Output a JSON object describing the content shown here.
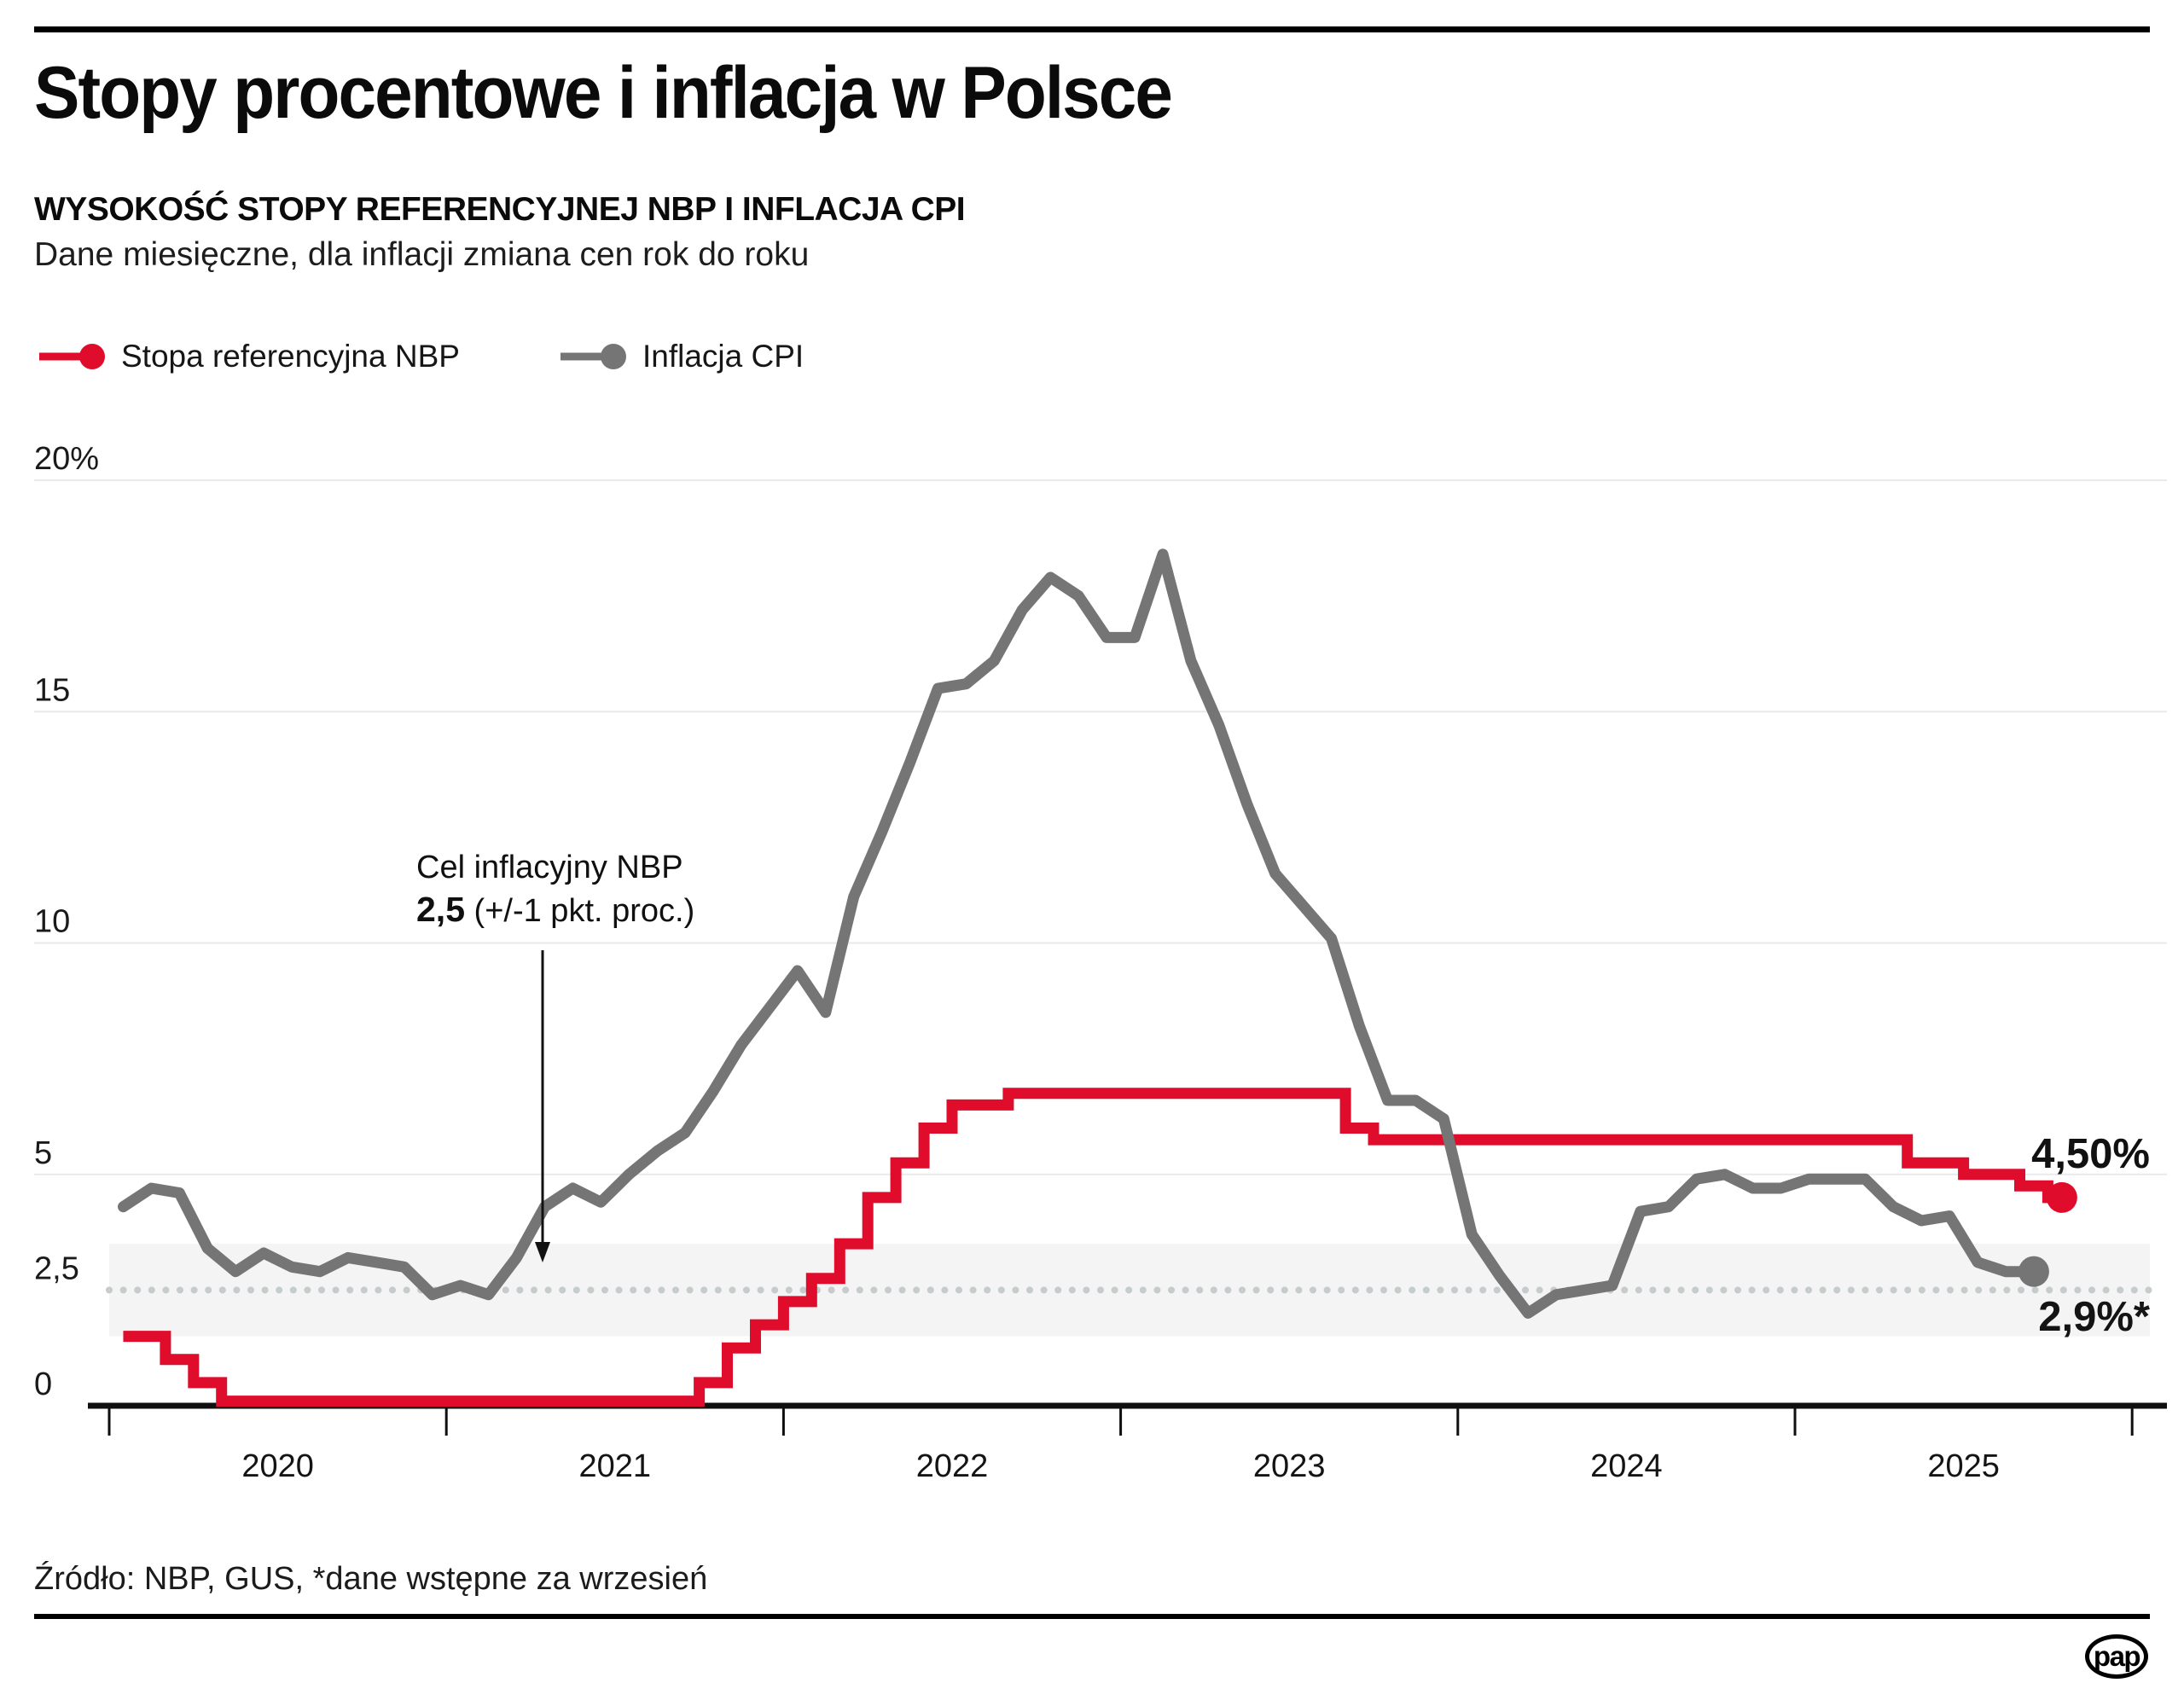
{
  "header": {
    "title": "Stopy procentowe i inflacja w Polsce",
    "subtitle": "WYSOKOŚĆ STOPY REFERENCYJNEJ NBP I INFLACJA CPI",
    "description": "Dane miesięczne, dla inflacji zmiana cen rok do roku"
  },
  "legend": {
    "rate_label": "Stopa referencyjna NBP",
    "cpi_label": "Inflacja CPI"
  },
  "annotation": {
    "line1": "Cel inflacyjny NBP",
    "line2_bold": "2,5",
    "line2_rest": " (+/-1 pkt. proc.)"
  },
  "source": "Źródło: NBP, GUS, *dane wstępne za wrzesień",
  "logo_text": "pap",
  "chart_data": {
    "type": "line",
    "x_start": "2020-01",
    "x_frequency": "monthly",
    "x_tick_years": [
      "2020",
      "2021",
      "2022",
      "2023",
      "2024",
      "2025"
    ],
    "ylim": [
      0,
      20
    ],
    "grid": true,
    "legend_position": "top-left",
    "y_ticks": [
      {
        "value": 0,
        "label": "0",
        "grid": false
      },
      {
        "value": 2.5,
        "label": "2,5",
        "grid": false
      },
      {
        "value": 5,
        "label": "5",
        "grid": true
      },
      {
        "value": 10,
        "label": "10",
        "grid": true
      },
      {
        "value": 15,
        "label": "15",
        "grid": true
      },
      {
        "value": 20,
        "label": "20%",
        "grid": true
      }
    ],
    "target_band": {
      "center": 2.5,
      "from": 1.5,
      "to": 3.5
    },
    "colors": {
      "rate": "#df0c2c",
      "cpi": "#757575",
      "band": "#f4f4f4",
      "grid": "#e9eaeb",
      "dotted": "#c6cbce",
      "axis": "#0f0f0f"
    },
    "series": [
      {
        "name": "Stopa referencyjna NBP",
        "type": "step",
        "color": "#df0c2c",
        "end_label": "4,50%",
        "end_value": 4.5,
        "values": [
          1.5,
          1.5,
          1.0,
          0.5,
          0.1,
          0.1,
          0.1,
          0.1,
          0.1,
          0.1,
          0.1,
          0.1,
          0.1,
          0.1,
          0.1,
          0.1,
          0.1,
          0.1,
          0.1,
          0.1,
          0.1,
          0.5,
          1.25,
          1.75,
          2.25,
          2.75,
          3.5,
          4.5,
          5.25,
          6.0,
          6.5,
          6.5,
          6.75,
          6.75,
          6.75,
          6.75,
          6.75,
          6.75,
          6.75,
          6.75,
          6.75,
          6.75,
          6.75,
          6.75,
          6.0,
          5.75,
          5.75,
          5.75,
          5.75,
          5.75,
          5.75,
          5.75,
          5.75,
          5.75,
          5.75,
          5.75,
          5.75,
          5.75,
          5.75,
          5.75,
          5.75,
          5.75,
          5.75,
          5.75,
          5.25,
          5.25,
          5.0,
          5.0,
          4.75,
          4.5
        ]
      },
      {
        "name": "Inflacja CPI",
        "type": "line",
        "color": "#757575",
        "end_label": "2,9%*",
        "end_value": 2.9,
        "values": [
          4.3,
          4.7,
          4.6,
          3.4,
          2.9,
          3.3,
          3.0,
          2.9,
          3.2,
          3.1,
          3.0,
          2.4,
          2.6,
          2.4,
          3.2,
          4.3,
          4.7,
          4.4,
          5.0,
          5.5,
          5.9,
          6.8,
          7.8,
          8.6,
          9.4,
          8.5,
          11.0,
          12.4,
          13.9,
          15.5,
          15.6,
          16.1,
          17.2,
          17.9,
          17.5,
          16.6,
          16.6,
          18.4,
          16.1,
          14.7,
          13.0,
          11.5,
          10.8,
          10.1,
          8.2,
          6.6,
          6.6,
          6.2,
          3.7,
          2.8,
          2.0,
          2.4,
          2.5,
          2.6,
          4.2,
          4.3,
          4.9,
          5.0,
          4.7,
          4.7,
          4.9,
          4.9,
          4.9,
          4.3,
          4.0,
          4.1,
          3.1,
          2.9,
          2.9
        ]
      }
    ]
  }
}
